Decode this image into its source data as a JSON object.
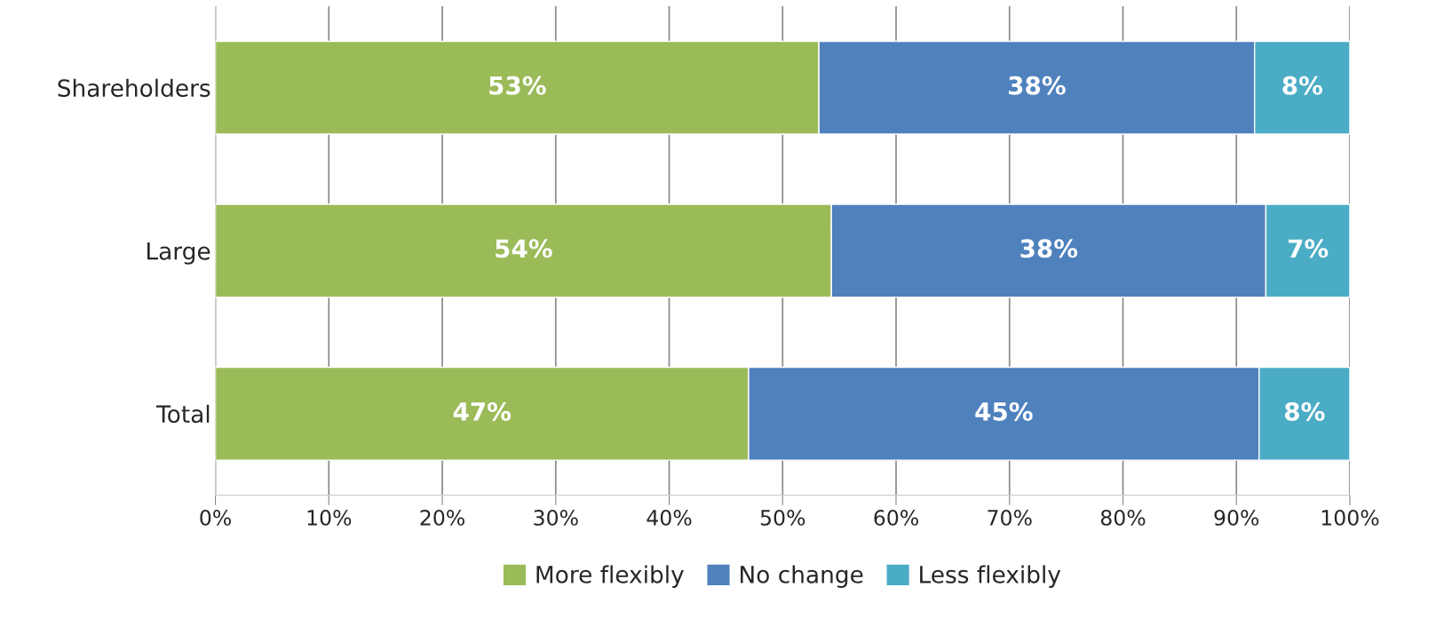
{
  "chart_data": {
    "type": "bar",
    "orientation": "horizontal",
    "stacked": true,
    "categories": [
      "Shareholders",
      "Large",
      "Total"
    ],
    "series": [
      {
        "name": "More flexibly",
        "color": "#9bbb59",
        "values": [
          53.2,
          54.3,
          47.0
        ],
        "value_labels": [
          "53%",
          "54%",
          "47%"
        ]
      },
      {
        "name": "No change",
        "color": "#4f81bd",
        "values": [
          38.4,
          38.3,
          45.0
        ],
        "value_labels": [
          "38%",
          "38%",
          "45%"
        ]
      },
      {
        "name": "Less flexibly",
        "color": "#4bacc6",
        "values": [
          8.4,
          7.4,
          8.0
        ],
        "value_labels": [
          "8%",
          "7%",
          "8%"
        ]
      }
    ],
    "xlim": [
      0,
      100
    ],
    "xticks": [
      {
        "value": 0,
        "label": "0%"
      },
      {
        "value": 10,
        "label": "10%"
      },
      {
        "value": 20,
        "label": "20%"
      },
      {
        "value": 30,
        "label": "30%"
      },
      {
        "value": 40,
        "label": "40%"
      },
      {
        "value": 50,
        "label": "50%"
      },
      {
        "value": 60,
        "label": "60%"
      },
      {
        "value": 70,
        "label": "70%"
      },
      {
        "value": 80,
        "label": "80%"
      },
      {
        "value": 90,
        "label": "90%"
      },
      {
        "value": 100,
        "label": "100%"
      }
    ],
    "grid": "x",
    "legend": "bottom"
  }
}
